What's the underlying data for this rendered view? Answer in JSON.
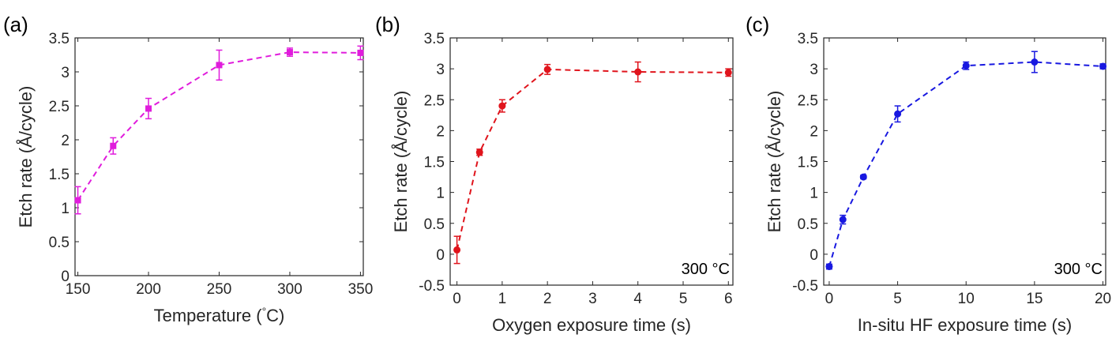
{
  "chart_data": [
    {
      "type": "scatter",
      "panel_label": "(a)",
      "xlabel": "Temperature (",
      "xlabel_degree": "°",
      "xlabel_suffix": "C)",
      "ylabel": "Etch rate (Å/cycle)",
      "annotation": "",
      "xlim": [
        148,
        352
      ],
      "ylim": [
        0,
        3.5
      ],
      "xticks": [
        150,
        200,
        250,
        300,
        350
      ],
      "xtick_labels": [
        "150",
        "200",
        "250",
        "300",
        "350"
      ],
      "yticks": [
        0,
        0.5,
        1,
        1.5,
        2,
        2.5,
        3,
        3.5
      ],
      "ytick_labels": [
        "0",
        "0.5",
        "1",
        "1.5",
        "2",
        "2.5",
        "3",
        "3.5"
      ],
      "color": "#e01cdc",
      "marker": "square",
      "line_style": "dashed",
      "grid": false,
      "series": [
        {
          "x": [
            150,
            175,
            200,
            250,
            300,
            350
          ],
          "y": [
            1.11,
            1.91,
            2.46,
            3.1,
            3.29,
            3.28
          ],
          "error": [
            0.2,
            0.12,
            0.15,
            0.22,
            0.06,
            0.1
          ]
        }
      ]
    },
    {
      "type": "scatter",
      "panel_label": "(b)",
      "xlabel": "Oxygen exposure time (s)",
      "ylabel": "Etch rate (Å/cycle)",
      "annotation": "300 °C",
      "xlim": [
        -0.15,
        6.1
      ],
      "ylim": [
        -0.5,
        3.5
      ],
      "xticks": [
        0,
        1,
        2,
        3,
        4,
        5,
        6
      ],
      "xtick_labels": [
        "0",
        "1",
        "2",
        "3",
        "4",
        "5",
        "6"
      ],
      "yticks": [
        -0.5,
        0,
        0.5,
        1,
        1.5,
        2,
        2.5,
        3,
        3.5
      ],
      "ytick_labels": [
        "-0.5",
        "0",
        "0.5",
        "1",
        "1.5",
        "2",
        "2.5",
        "3",
        "3.5"
      ],
      "color": "#e0141c",
      "marker": "circle",
      "line_style": "dashed",
      "grid": false,
      "series": [
        {
          "x": [
            0,
            0.5,
            1,
            2,
            4,
            6
          ],
          "y": [
            0.07,
            1.65,
            2.4,
            2.99,
            2.95,
            2.94
          ],
          "error": [
            0.22,
            0.05,
            0.1,
            0.08,
            0.16,
            0.06
          ]
        }
      ]
    },
    {
      "type": "scatter",
      "panel_label": "(c)",
      "xlabel": "In-situ HF exposure time (s)",
      "ylabel": "Etch rate (Å/cycle)",
      "annotation": "300 °C",
      "xlim": [
        -0.4,
        20.2
      ],
      "ylim": [
        -0.5,
        3.5
      ],
      "xticks": [
        0,
        5,
        10,
        15,
        20
      ],
      "xtick_labels": [
        "0",
        "5",
        "10",
        "15",
        "20"
      ],
      "yticks": [
        -0.5,
        0,
        0.5,
        1,
        1.5,
        2,
        2.5,
        3,
        3.5
      ],
      "ytick_labels": [
        "-0.5",
        "0",
        "0.5",
        "1",
        "1.5",
        "2",
        "2.5",
        "3",
        "3.5"
      ],
      "color": "#1818e0",
      "marker": "circle",
      "line_style": "dashed",
      "grid": false,
      "series": [
        {
          "x": [
            0,
            1,
            2.5,
            5,
            10,
            15,
            20
          ],
          "y": [
            -0.2,
            0.56,
            1.25,
            2.27,
            3.05,
            3.11,
            3.04
          ],
          "error": [
            0.04,
            0.07,
            0.03,
            0.13,
            0.06,
            0.17,
            0.04
          ]
        }
      ]
    }
  ]
}
